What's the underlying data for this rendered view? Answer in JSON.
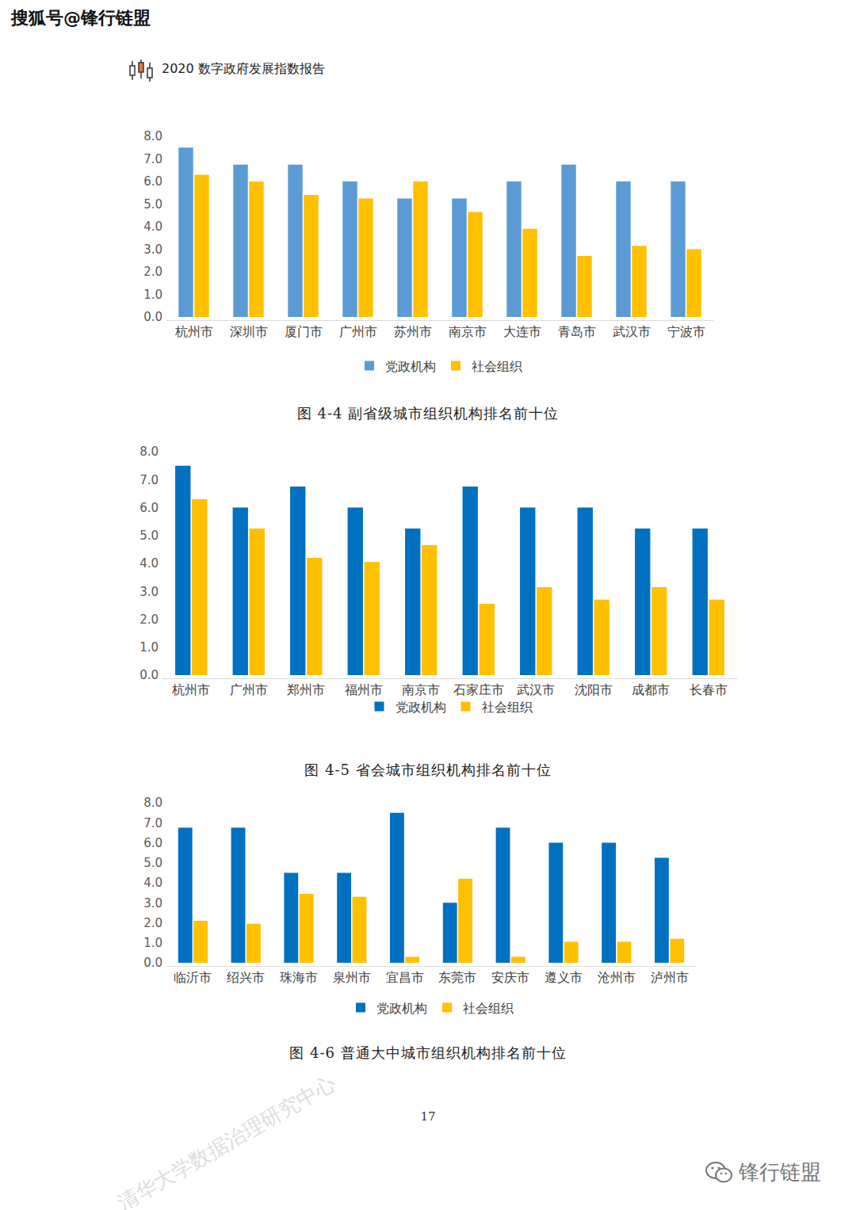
{
  "header": {
    "source": "搜狐号@锋行链盟",
    "report_title": "2020 数字政府发展指数报告"
  },
  "chart_data": [
    {
      "type": "bar",
      "title": "图 4-4 副省级城市组织机构排名前十位",
      "categories": [
        "杭州市",
        "深圳市",
        "厦门市",
        "广州市",
        "苏州市",
        "南京市",
        "大连市",
        "青岛市",
        "武汉市",
        "宁波市"
      ],
      "series": [
        {
          "name": "党政机构",
          "color": "#5B9BD5",
          "values": [
            7.5,
            6.75,
            6.75,
            6.0,
            5.25,
            5.25,
            6.0,
            6.75,
            6.0,
            6.0
          ]
        },
        {
          "name": "社会组织",
          "color": "#FFC000",
          "values": [
            6.3,
            6.0,
            5.4,
            5.25,
            6.0,
            4.65,
            3.9,
            2.7,
            3.15,
            3.0
          ]
        }
      ],
      "ylim": [
        0,
        8
      ],
      "yticks": [
        {
          "value": 0,
          "label": "0.0"
        },
        {
          "value": 1,
          "label": "1.0"
        },
        {
          "value": 2,
          "label": "2.0"
        },
        {
          "value": 3,
          "label": "3.0"
        },
        {
          "value": 4,
          "label": "4.0"
        },
        {
          "value": 5,
          "label": "5.0"
        },
        {
          "value": 6,
          "label": "6.0"
        },
        {
          "value": 7,
          "label": "7.0"
        },
        {
          "value": 8,
          "label": "8.0"
        }
      ],
      "grid": false,
      "legend": "bottom"
    },
    {
      "type": "bar",
      "title": "图 4-5 省会城市组织机构排名前十位",
      "categories": [
        "杭州市",
        "广州市",
        "郑州市",
        "福州市",
        "南京市",
        "石家庄市",
        "武汉市",
        "沈阳市",
        "成都市",
        "长春市"
      ],
      "series": [
        {
          "name": "党政机构",
          "color": "#0070C0",
          "values": [
            7.5,
            6.0,
            6.75,
            6.0,
            5.25,
            6.75,
            6.0,
            6.0,
            5.25,
            5.25
          ]
        },
        {
          "name": "社会组织",
          "color": "#FFC000",
          "values": [
            6.3,
            5.25,
            4.2,
            4.05,
            4.65,
            2.55,
            3.15,
            2.7,
            3.15,
            2.7
          ]
        }
      ],
      "ylim": [
        0,
        8
      ],
      "yticks": [
        {
          "value": 0,
          "label": "0.0"
        },
        {
          "value": 1,
          "label": "1.0"
        },
        {
          "value": 2,
          "label": "2.0"
        },
        {
          "value": 3,
          "label": "3.0"
        },
        {
          "value": 4,
          "label": "4.0"
        },
        {
          "value": 5,
          "label": "5.0"
        },
        {
          "value": 6,
          "label": "6.0"
        },
        {
          "value": 7,
          "label": "7.0"
        },
        {
          "value": 8,
          "label": "8.0"
        }
      ],
      "grid": false,
      "legend": "bottom"
    },
    {
      "type": "bar",
      "title": "图 4-6 普通大中城市组织机构排名前十位",
      "categories": [
        "临沂市",
        "绍兴市",
        "珠海市",
        "泉州市",
        "宜昌市",
        "东莞市",
        "安庆市",
        "遵义市",
        "沧州市",
        "泸州市"
      ],
      "series": [
        {
          "name": "党政机构",
          "color": "#0070C0",
          "values": [
            6.75,
            6.75,
            4.5,
            4.5,
            7.5,
            3.0,
            6.75,
            6.0,
            6.0,
            5.25
          ]
        },
        {
          "name": "社会组织",
          "color": "#FFC000",
          "values": [
            2.1,
            1.95,
            3.45,
            3.3,
            0.3,
            4.2,
            0.3,
            1.05,
            1.05,
            1.2
          ]
        }
      ],
      "ylim": [
        0,
        8
      ],
      "yticks": [
        {
          "value": 0,
          "label": "0.0"
        },
        {
          "value": 1,
          "label": "1.0"
        },
        {
          "value": 2,
          "label": "2.0"
        },
        {
          "value": 3,
          "label": "3.0"
        },
        {
          "value": 4,
          "label": "4.0"
        },
        {
          "value": 5,
          "label": "5.0"
        },
        {
          "value": 6,
          "label": "6.0"
        },
        {
          "value": 7,
          "label": "7.0"
        },
        {
          "value": 8,
          "label": "8.0"
        }
      ],
      "grid": false,
      "legend": "bottom"
    }
  ],
  "page_number": "17",
  "watermark": "清华大学数据治理研究中心",
  "footer": {
    "account": "锋行链盟"
  }
}
